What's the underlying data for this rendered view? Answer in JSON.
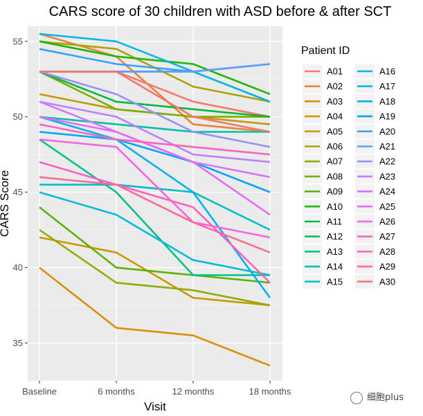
{
  "chart_data": {
    "type": "line",
    "title": "CARS score of 30 children with ASD before & after SCT",
    "xlabel": "Visit",
    "ylabel": "CARS Score",
    "categories": [
      "Baseline",
      "6 months",
      "12 months",
      "18 months"
    ],
    "ylim": [
      32.5,
      56.0
    ],
    "yticks": [
      35,
      40,
      45,
      50,
      55
    ],
    "grid": true,
    "legend": {
      "title": "Patient ID",
      "position": "right",
      "columns": 2
    },
    "series": [
      {
        "name": "A01",
        "color": "#F8766D",
        "values": [
          53.0,
          53.0,
          51.0,
          50.0
        ]
      },
      {
        "name": "A02",
        "color": "#EB8335",
        "values": [
          55.5,
          54.0,
          49.5,
          49.0
        ]
      },
      {
        "name": "A03",
        "color": "#DB8E00",
        "values": [
          40.0,
          36.0,
          35.5,
          33.5
        ]
      },
      {
        "name": "A04",
        "color": "#C99800",
        "values": [
          42.0,
          41.0,
          38.0,
          37.5
        ]
      },
      {
        "name": "A05",
        "color": "#C49A00",
        "values": [
          51.5,
          50.5,
          50.0,
          49.5
        ]
      },
      {
        "name": "A06",
        "color": "#AEA200",
        "values": [
          55.0,
          54.5,
          52.0,
          51.0
        ]
      },
      {
        "name": "A07",
        "color": "#96A900",
        "values": [
          42.5,
          39.0,
          38.5,
          37.5
        ]
      },
      {
        "name": "A08",
        "color": "#7CAE00",
        "values": [
          53.0,
          50.5,
          50.0,
          50.0
        ]
      },
      {
        "name": "A09",
        "color": "#5BB300",
        "values": [
          44.0,
          40.0,
          39.5,
          39.0
        ]
      },
      {
        "name": "A10",
        "color": "#1EB800",
        "values": [
          55.0,
          54.0,
          53.5,
          51.5
        ]
      },
      {
        "name": "A11",
        "color": "#00BB3A",
        "values": [
          53.0,
          51.0,
          50.5,
          50.0
        ]
      },
      {
        "name": "A12",
        "color": "#00BE67",
        "values": [
          53.0,
          53.0,
          53.0,
          51.0
        ]
      },
      {
        "name": "A13",
        "color": "#00C08B",
        "values": [
          48.5,
          45.0,
          39.5,
          39.5
        ]
      },
      {
        "name": "A14",
        "color": "#00C1A9",
        "values": [
          50.0,
          49.5,
          49.0,
          49.0
        ]
      },
      {
        "name": "A15",
        "color": "#00BFC4",
        "values": [
          45.5,
          45.5,
          45.0,
          42.5
        ]
      },
      {
        "name": "A16",
        "color": "#00BCD8",
        "values": [
          45.0,
          43.5,
          40.5,
          39.5
        ]
      },
      {
        "name": "A17",
        "color": "#00B8E7",
        "values": [
          55.5,
          55.0,
          53.0,
          51.0
        ]
      },
      {
        "name": "A18",
        "color": "#00B0F6",
        "values": [
          50.0,
          48.5,
          45.0,
          38.0
        ]
      },
      {
        "name": "A19",
        "color": "#00A5FF",
        "values": [
          49.0,
          48.5,
          47.0,
          45.0
        ]
      },
      {
        "name": "A20",
        "color": "#35A2FF",
        "values": [
          54.5,
          53.5,
          53.0,
          53.5
        ]
      },
      {
        "name": "A21",
        "color": "#619CFF",
        "values": [
          53.0,
          53.0,
          53.0,
          53.5
        ]
      },
      {
        "name": "A22",
        "color": "#9590FF",
        "values": [
          53.0,
          51.5,
          49.0,
          48.0
        ]
      },
      {
        "name": "A23",
        "color": "#B983FF",
        "values": [
          51.0,
          50.0,
          47.5,
          47.0
        ]
      },
      {
        "name": "A24",
        "color": "#D575FE",
        "values": [
          51.0,
          49.0,
          47.0,
          46.0
        ]
      },
      {
        "name": "A25",
        "color": "#E76BF3",
        "values": [
          50.0,
          49.0,
          47.0,
          43.5
        ]
      },
      {
        "name": "A26",
        "color": "#F763E0",
        "values": [
          48.5,
          48.0,
          43.0,
          42.0
        ]
      },
      {
        "name": "A27",
        "color": "#FF62BC",
        "values": [
          49.5,
          48.5,
          48.0,
          47.5
        ]
      },
      {
        "name": "A28",
        "color": "#FF61C3",
        "values": [
          47.0,
          45.5,
          44.0,
          39.0
        ]
      },
      {
        "name": "A29",
        "color": "#FF6A98",
        "values": [
          46.0,
          45.5,
          43.0,
          41.0
        ]
      },
      {
        "name": "A30",
        "color": "#F8766D",
        "values": [
          53.0,
          53.0,
          50.0,
          49.0
        ]
      }
    ]
  },
  "watermark": {
    "text": "细胞plus"
  }
}
